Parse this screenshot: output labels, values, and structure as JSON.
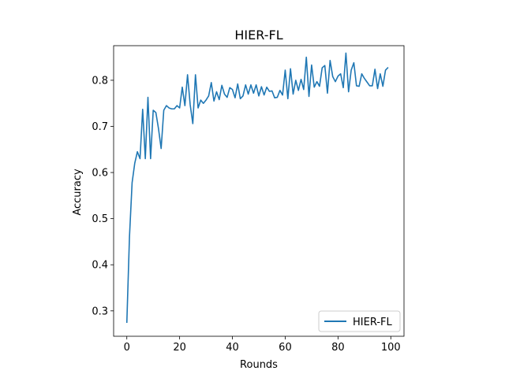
{
  "chart_data": {
    "type": "line",
    "title": "HIER-FL",
    "xlabel": "Rounds",
    "ylabel": "Accuracy",
    "xlim": [
      -5,
      105
    ],
    "ylim": [
      0.245,
      0.875
    ],
    "xticks": [
      0,
      20,
      40,
      60,
      80,
      100
    ],
    "yticks": [
      0.3,
      0.4,
      0.5,
      0.6,
      0.7,
      0.8
    ],
    "xtick_labels": [
      "0",
      "20",
      "40",
      "60",
      "80",
      "100"
    ],
    "ytick_labels": [
      "0.3",
      "0.4",
      "0.5",
      "0.6",
      "0.7",
      "0.8"
    ],
    "legend_position": "lower-right",
    "grid": false,
    "series": [
      {
        "name": "HIER-FL",
        "color": "#1f77b4",
        "x": [
          0,
          1,
          2,
          3,
          4,
          5,
          6,
          7,
          8,
          9,
          10,
          11,
          12,
          13,
          14,
          15,
          16,
          17,
          18,
          19,
          20,
          21,
          22,
          23,
          24,
          25,
          26,
          27,
          28,
          29,
          30,
          31,
          32,
          33,
          34,
          35,
          36,
          37,
          38,
          39,
          40,
          41,
          42,
          43,
          44,
          45,
          46,
          47,
          48,
          49,
          50,
          51,
          52,
          53,
          54,
          55,
          56,
          57,
          58,
          59,
          60,
          61,
          62,
          63,
          64,
          65,
          66,
          67,
          68,
          69,
          70,
          71,
          72,
          73,
          74,
          75,
          76,
          77,
          78,
          79,
          80,
          81,
          82,
          83,
          84,
          85,
          86,
          87,
          88,
          89,
          90,
          91,
          92,
          93,
          94,
          95,
          96,
          97,
          98,
          99
        ],
        "values": [
          0.274,
          0.46,
          0.578,
          0.62,
          0.645,
          0.63,
          0.737,
          0.63,
          0.763,
          0.63,
          0.735,
          0.73,
          0.695,
          0.652,
          0.735,
          0.745,
          0.74,
          0.738,
          0.738,
          0.745,
          0.74,
          0.785,
          0.745,
          0.812,
          0.747,
          0.706,
          0.812,
          0.74,
          0.757,
          0.75,
          0.757,
          0.766,
          0.795,
          0.755,
          0.775,
          0.758,
          0.789,
          0.77,
          0.763,
          0.784,
          0.78,
          0.762,
          0.792,
          0.76,
          0.766,
          0.79,
          0.77,
          0.79,
          0.772,
          0.79,
          0.766,
          0.786,
          0.768,
          0.785,
          0.776,
          0.777,
          0.762,
          0.763,
          0.778,
          0.768,
          0.822,
          0.76,
          0.825,
          0.77,
          0.8,
          0.778,
          0.802,
          0.78,
          0.85,
          0.765,
          0.833,
          0.785,
          0.797,
          0.787,
          0.827,
          0.832,
          0.772,
          0.843,
          0.808,
          0.797,
          0.809,
          0.814,
          0.784,
          0.859,
          0.775,
          0.822,
          0.838,
          0.788,
          0.787,
          0.814,
          0.804,
          0.796,
          0.788,
          0.788,
          0.824,
          0.782,
          0.814,
          0.787,
          0.822,
          0.828
        ]
      }
    ]
  }
}
